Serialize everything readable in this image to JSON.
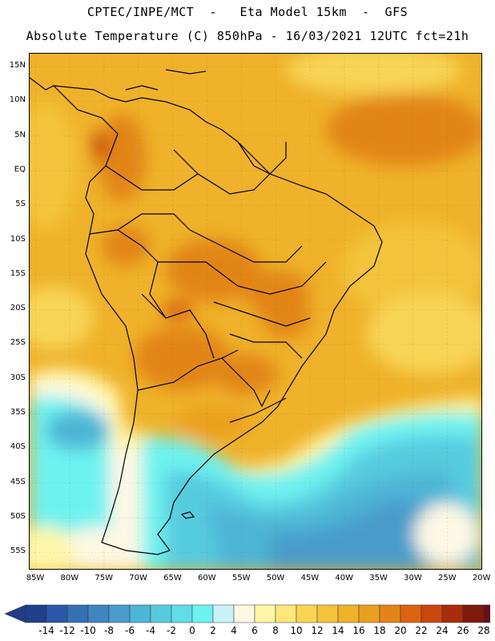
{
  "title_line1": "CPTEC/INPE/MCT  -   Eta Model 15km  -  GFS",
  "title_line2": "Absolute Temperature (C) 850hPa - 16/03/2021 12UTC fct=21h",
  "lat_labels": [
    "15N",
    "10N",
    "5N",
    "EQ",
    "5S",
    "10S",
    "15S",
    "20S",
    "25S",
    "30S",
    "35S",
    "40S",
    "45S",
    "50S",
    "55S"
  ],
  "lon_labels": [
    "85W",
    "80W",
    "75W",
    "70W",
    "65W",
    "60W",
    "55W",
    "50W",
    "45W",
    "40W",
    "35W",
    "30W",
    "25W",
    "20W"
  ],
  "colorbar": {
    "labels": [
      "-14",
      "-12",
      "-10",
      "-8",
      "-6",
      "-4",
      "-2",
      "0",
      "2",
      "4",
      "6",
      "8",
      "10",
      "12",
      "14",
      "16",
      "18",
      "20",
      "22",
      "24",
      "26",
      "28"
    ],
    "colors": [
      "#1e3f8c",
      "#2a58a6",
      "#3470b4",
      "#3f85bf",
      "#4a9cca",
      "#4db5d6",
      "#56cbe0",
      "#5fdde9",
      "#6ef2f0",
      "#c8f2f6",
      "#fdf8e4",
      "#fff6a8",
      "#fde67a",
      "#f8d455",
      "#f3c43a",
      "#efb22a",
      "#eaa01e",
      "#e28516",
      "#dc6410",
      "#c9460c",
      "#a92c0c",
      "#7d1a0a",
      "#6a0e1e"
    ],
    "low_arrow": "#233b8a",
    "high_arrow": "#6a0a1f"
  }
}
